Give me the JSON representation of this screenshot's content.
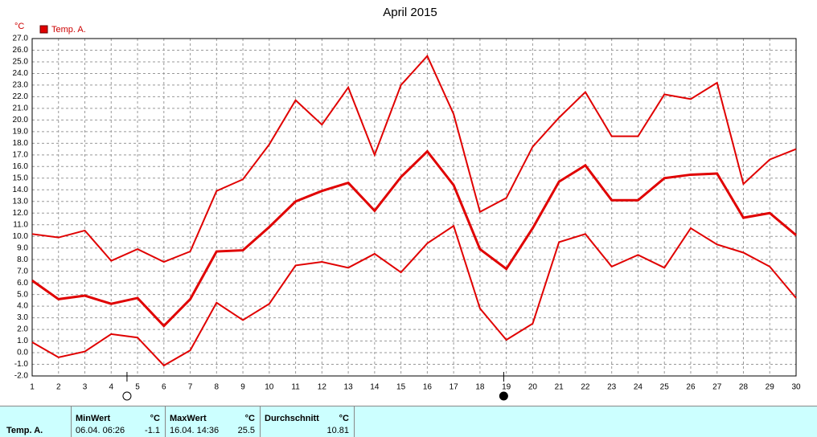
{
  "chart_data": {
    "type": "line",
    "title": "April 2015",
    "y_unit": "°C",
    "x": [
      1,
      2,
      3,
      4,
      5,
      6,
      7,
      8,
      9,
      10,
      11,
      12,
      13,
      14,
      15,
      16,
      17,
      18,
      19,
      20,
      21,
      22,
      23,
      24,
      25,
      26,
      27,
      28,
      29,
      30
    ],
    "xlim": [
      1,
      30
    ],
    "xticks": [
      1,
      2,
      3,
      4,
      5,
      6,
      7,
      8,
      9,
      10,
      11,
      12,
      13,
      14,
      15,
      16,
      17,
      18,
      19,
      20,
      21,
      22,
      23,
      24,
      25,
      26,
      27,
      28,
      29,
      30
    ],
    "ylim": [
      -2,
      27
    ],
    "yticks": [
      {
        "value": -2,
        "label": "-2.0"
      },
      {
        "value": -1,
        "label": "-1.0"
      },
      {
        "value": 0,
        "label": "0.0"
      },
      {
        "value": 1,
        "label": "1.0"
      },
      {
        "value": 2,
        "label": "2.0"
      },
      {
        "value": 3,
        "label": "3.0"
      },
      {
        "value": 4,
        "label": "4.0"
      },
      {
        "value": 5,
        "label": "5.0"
      },
      {
        "value": 6,
        "label": "6.0"
      },
      {
        "value": 7,
        "label": "7.0"
      },
      {
        "value": 8,
        "label": "8.0"
      },
      {
        "value": 9,
        "label": "9.0"
      },
      {
        "value": 10,
        "label": "10.0"
      },
      {
        "value": 11,
        "label": "11.0"
      },
      {
        "value": 12,
        "label": "12.0"
      },
      {
        "value": 13,
        "label": "13.0"
      },
      {
        "value": 14,
        "label": "14.0"
      },
      {
        "value": 15,
        "label": "15.0"
      },
      {
        "value": 16,
        "label": "16.0"
      },
      {
        "value": 17,
        "label": "17.0"
      },
      {
        "value": 18,
        "label": "18.0"
      },
      {
        "value": 19,
        "label": "19.0"
      },
      {
        "value": 20,
        "label": "20.0"
      },
      {
        "value": 21,
        "label": "21.0"
      },
      {
        "value": 22,
        "label": "22.0"
      },
      {
        "value": 23,
        "label": "23.0"
      },
      {
        "value": 24,
        "label": "24.0"
      },
      {
        "value": 25,
        "label": "25.0"
      },
      {
        "value": 26,
        "label": "26.0"
      },
      {
        "value": 27,
        "label": "27.0"
      }
    ],
    "grid": true,
    "series": [
      {
        "name": "Temp. A.",
        "color": "#e00000",
        "max": [
          10.2,
          9.9,
          10.5,
          7.9,
          8.9,
          7.8,
          8.7,
          13.9,
          14.9,
          17.9,
          21.7,
          19.6,
          22.8,
          17.0,
          23.0,
          25.5,
          20.5,
          12.1,
          13.3,
          17.7,
          20.2,
          22.4,
          18.6,
          18.6,
          22.2,
          21.8,
          23.2,
          14.5,
          16.6,
          17.5
        ],
        "mean": [
          6.2,
          4.6,
          4.9,
          4.2,
          4.7,
          2.3,
          4.6,
          8.7,
          8.8,
          10.8,
          13.0,
          13.9,
          14.6,
          12.2,
          15.1,
          17.3,
          14.4,
          8.9,
          7.2,
          10.7,
          14.7,
          16.1,
          13.1,
          13.1,
          15.0,
          15.3,
          15.4,
          11.6,
          12.0,
          10.1
        ],
        "min": [
          0.9,
          -0.4,
          0.1,
          1.6,
          1.3,
          -1.1,
          0.2,
          4.3,
          2.8,
          4.2,
          7.5,
          7.8,
          7.3,
          8.5,
          6.9,
          9.4,
          10.9,
          3.8,
          1.1,
          2.5,
          9.5,
          10.2,
          7.4,
          8.4,
          7.3,
          10.7,
          9.3,
          8.6,
          7.4,
          4.7
        ]
      }
    ],
    "moon_markers": [
      {
        "x": 4.6,
        "filled": false
      },
      {
        "x": 18.9,
        "filled": true
      }
    ]
  },
  "summary": {
    "row_label": "Temp. A.",
    "unit": "°C",
    "min": {
      "header": "MinWert",
      "time": "06.04.  06:26",
      "value": -1.1
    },
    "max": {
      "header": "MaxWert",
      "time": "16.04.  14:36",
      "value": 25.5
    },
    "avg": {
      "header": "Durchschnitt",
      "value": 10.81
    }
  }
}
